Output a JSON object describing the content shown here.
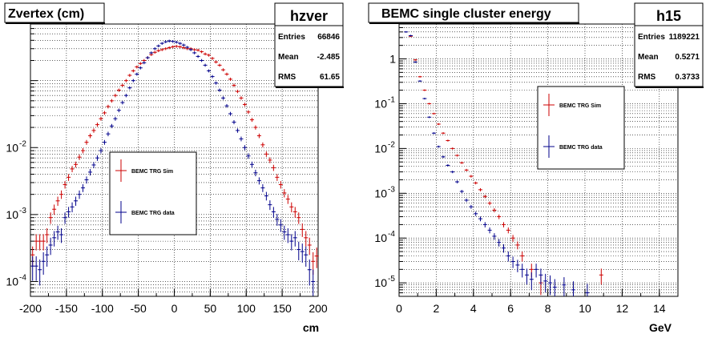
{
  "chart_data": [
    {
      "type": "scatter",
      "title": "Zvertex (cm)",
      "xlabel": "cm",
      "ylabel": "",
      "xlim": [
        -200,
        200
      ],
      "ylim": [
        6e-05,
        0.7
      ],
      "log_y": true,
      "grid": true,
      "x_ticks": [
        "-200",
        "-150",
        "-100",
        "-50",
        "0",
        "50",
        "100",
        "150",
        "200"
      ],
      "y_ticks": [
        {
          "base": "10",
          "exp": "-2",
          "value": 0.01
        },
        {
          "base": "10",
          "exp": "-3",
          "value": 0.001
        },
        {
          "base": "10",
          "exp": "-4",
          "value": 0.0001
        }
      ],
      "stats": {
        "name": "hzver",
        "rows": [
          {
            "label": "Entries",
            "value": "66846"
          },
          {
            "label": "Mean",
            "value": "-2.485"
          },
          {
            "label": "RMS",
            "value": "61.65"
          }
        ]
      },
      "legend": {
        "position": "center-left",
        "entries": [
          {
            "label": "BEMC TRG Sim",
            "color": "#cc0000"
          },
          {
            "label": "BEMC TRG data",
            "color": "#00008b"
          }
        ]
      },
      "series": [
        {
          "color": "#cc0000",
          "points": [
            [
              -197,
              0.00025
            ],
            [
              -192,
              0.0004
            ],
            [
              -187,
              0.0004
            ],
            [
              -182,
              0.0004
            ],
            [
              -177,
              0.0005
            ],
            [
              -172,
              0.0009
            ],
            [
              -167,
              0.0012
            ],
            [
              -162,
              0.0016
            ],
            [
              -157,
              0.002
            ],
            [
              -152,
              0.0028
            ],
            [
              -147,
              0.0036
            ],
            [
              -142,
              0.0048
            ],
            [
              -137,
              0.0056
            ],
            [
              -132,
              0.0072
            ],
            [
              -127,
              0.009
            ],
            [
              -122,
              0.012
            ],
            [
              -117,
              0.015
            ],
            [
              -112,
              0.018
            ],
            [
              -107,
              0.022
            ],
            [
              -102,
              0.027
            ],
            [
              -97,
              0.033
            ],
            [
              -92,
              0.041
            ],
            [
              -87,
              0.05
            ],
            [
              -82,
              0.06
            ],
            [
              -77,
              0.072
            ],
            [
              -72,
              0.085
            ],
            [
              -67,
              0.1
            ],
            [
              -62,
              0.12
            ],
            [
              -57,
              0.14
            ],
            [
              -52,
              0.16
            ],
            [
              -47,
              0.18
            ],
            [
              -42,
              0.2
            ],
            [
              -37,
              0.22
            ],
            [
              -32,
              0.245
            ],
            [
              -27,
              0.265
            ],
            [
              -22,
              0.28
            ],
            [
              -17,
              0.29
            ],
            [
              -12,
              0.3
            ],
            [
              -7,
              0.31
            ],
            [
              -2,
              0.32
            ],
            [
              3,
              0.325
            ],
            [
              8,
              0.32
            ],
            [
              13,
              0.31
            ],
            [
              18,
              0.3
            ],
            [
              23,
              0.3
            ],
            [
              28,
              0.29
            ],
            [
              33,
              0.285
            ],
            [
              38,
              0.27
            ],
            [
              43,
              0.25
            ],
            [
              48,
              0.24
            ],
            [
              53,
              0.215
            ],
            [
              58,
              0.19
            ],
            [
              63,
              0.17
            ],
            [
              68,
              0.145
            ],
            [
              73,
              0.125
            ],
            [
              78,
              0.105
            ],
            [
              83,
              0.085
            ],
            [
              88,
              0.069
            ],
            [
              93,
              0.055
            ],
            [
              98,
              0.044
            ],
            [
              103,
              0.034
            ],
            [
              108,
              0.026
            ],
            [
              113,
              0.02
            ],
            [
              118,
              0.015
            ],
            [
              123,
              0.011
            ],
            [
              128,
              0.008
            ],
            [
              133,
              0.0065
            ],
            [
              138,
              0.005
            ],
            [
              143,
              0.0036
            ],
            [
              148,
              0.0028
            ],
            [
              153,
              0.0021
            ],
            [
              158,
              0.0017
            ],
            [
              163,
              0.0013
            ],
            [
              168,
              0.0011
            ],
            [
              173,
              0.0009
            ],
            [
              178,
              0.0006
            ],
            [
              183,
              0.00045
            ],
            [
              188,
              0.00035
            ],
            [
              193,
              0.0002
            ],
            [
              198,
              0.00024
            ]
          ]
        },
        {
          "color": "#00008b",
          "points": [
            [
              -197,
              0.00017
            ],
            [
              -192,
              0.00017
            ],
            [
              -187,
              0.00015
            ],
            [
              -182,
              0.0002
            ],
            [
              -177,
              0.00025
            ],
            [
              -172,
              0.00035
            ],
            [
              -167,
              0.00045
            ],
            [
              -162,
              0.00055
            ],
            [
              -157,
              0.0005
            ],
            [
              -152,
              0.0009
            ],
            [
              -147,
              0.0011
            ],
            [
              -142,
              0.0013
            ],
            [
              -137,
              0.0016
            ],
            [
              -132,
              0.002
            ],
            [
              -127,
              0.0025
            ],
            [
              -122,
              0.0033
            ],
            [
              -117,
              0.0043
            ],
            [
              -112,
              0.0055
            ],
            [
              -107,
              0.007
            ],
            [
              -102,
              0.009
            ],
            [
              -97,
              0.012
            ],
            [
              -92,
              0.016
            ],
            [
              -87,
              0.021
            ],
            [
              -82,
              0.027
            ],
            [
              -77,
              0.036
            ],
            [
              -72,
              0.047
            ],
            [
              -67,
              0.06
            ],
            [
              -62,
              0.078
            ],
            [
              -57,
              0.1
            ],
            [
              -52,
              0.125
            ],
            [
              -47,
              0.155
            ],
            [
              -42,
              0.185
            ],
            [
              -37,
              0.22
            ],
            [
              -32,
              0.26
            ],
            [
              -27,
              0.3
            ],
            [
              -22,
              0.33
            ],
            [
              -17,
              0.36
            ],
            [
              -12,
              0.38
            ],
            [
              -7,
              0.39
            ],
            [
              -2,
              0.385
            ],
            [
              3,
              0.375
            ],
            [
              8,
              0.36
            ],
            [
              13,
              0.34
            ],
            [
              18,
              0.315
            ],
            [
              23,
              0.29
            ],
            [
              28,
              0.26
            ],
            [
              33,
              0.23
            ],
            [
              38,
              0.2
            ],
            [
              43,
              0.17
            ],
            [
              48,
              0.14
            ],
            [
              53,
              0.115
            ],
            [
              58,
              0.092
            ],
            [
              63,
              0.072
            ],
            [
              68,
              0.055
            ],
            [
              73,
              0.042
            ],
            [
              78,
              0.032
            ],
            [
              83,
              0.024
            ],
            [
              88,
              0.018
            ],
            [
              93,
              0.0135
            ],
            [
              98,
              0.01
            ],
            [
              103,
              0.0075
            ],
            [
              108,
              0.0056
            ],
            [
              113,
              0.0042
            ],
            [
              118,
              0.0032
            ],
            [
              123,
              0.0025
            ],
            [
              128,
              0.0019
            ],
            [
              133,
              0.0014
            ],
            [
              138,
              0.0011
            ],
            [
              143,
              0.00085
            ],
            [
              148,
              0.0007
            ],
            [
              153,
              0.00055
            ],
            [
              158,
              0.0005
            ],
            [
              163,
              0.0004
            ],
            [
              168,
              0.00045
            ],
            [
              173,
              0.0003
            ],
            [
              178,
              0.00028
            ],
            [
              183,
              0.00025
            ],
            [
              188,
              0.00015
            ],
            [
              193,
              0.0001
            ]
          ]
        }
      ]
    },
    {
      "type": "scatter",
      "title": "BEMC single cluster energy",
      "xlabel": "GeV",
      "ylabel": "",
      "xlim": [
        0,
        15
      ],
      "ylim": [
        5e-06,
        6
      ],
      "log_y": true,
      "grid": true,
      "x_ticks": [
        "0",
        "2",
        "4",
        "6",
        "8",
        "10",
        "12",
        "14"
      ],
      "y_ticks": [
        {
          "base": "1",
          "exp": "",
          "value": 1
        },
        {
          "base": "10",
          "exp": "-1",
          "value": 0.1
        },
        {
          "base": "10",
          "exp": "-2",
          "value": 0.01
        },
        {
          "base": "10",
          "exp": "-3",
          "value": 0.001
        },
        {
          "base": "10",
          "exp": "-4",
          "value": 0.0001
        },
        {
          "base": "10",
          "exp": "-5",
          "value": 1e-05
        }
      ],
      "stats": {
        "name": "h15",
        "rows": [
          {
            "label": "Entries",
            "value": "1189221"
          },
          {
            "label": "Mean",
            "value": "0.5271"
          },
          {
            "label": "RMS",
            "value": "0.3733"
          }
        ]
      },
      "legend": {
        "position": "center-right",
        "entries": [
          {
            "label": "BEMC TRG Sim",
            "color": "#cc0000"
          },
          {
            "label": "BEMC TRG data",
            "color": "#00008b"
          }
        ]
      },
      "series": [
        {
          "color": "#cc0000",
          "points": [
            [
              0.625,
              3.2
            ],
            [
              0.875,
              0.95
            ],
            [
              1.125,
              0.4
            ],
            [
              1.375,
              0.2
            ],
            [
              1.625,
              0.1
            ],
            [
              1.875,
              0.06
            ],
            [
              2.125,
              0.035
            ],
            [
              2.375,
              0.022
            ],
            [
              2.625,
              0.015
            ],
            [
              2.875,
              0.01
            ],
            [
              3.125,
              0.007
            ],
            [
              3.375,
              0.0048
            ],
            [
              3.625,
              0.0033
            ],
            [
              3.875,
              0.0024
            ],
            [
              4.125,
              0.0017
            ],
            [
              4.375,
              0.0012
            ],
            [
              4.625,
              0.00085
            ],
            [
              4.875,
              0.0006
            ],
            [
              5.125,
              0.00042
            ],
            [
              5.375,
              0.0003
            ],
            [
              5.625,
              0.0002
            ],
            [
              5.875,
              0.00015
            ],
            [
              6.125,
              0.0001
            ],
            [
              6.375,
              7e-05
            ],
            [
              6.625,
              4e-05
            ],
            [
              7.125,
              2e-05
            ],
            [
              7.625,
              1e-05
            ],
            [
              10.875,
              1.5e-05
            ]
          ]
        },
        {
          "color": "#00008b",
          "points": [
            [
              0.375,
              4
            ],
            [
              0.625,
              3.3
            ],
            [
              0.875,
              0.85
            ],
            [
              1.125,
              0.32
            ],
            [
              1.375,
              0.13
            ],
            [
              1.625,
              0.05
            ],
            [
              1.875,
              0.022
            ],
            [
              2.125,
              0.011
            ],
            [
              2.375,
              0.0065
            ],
            [
              2.625,
              0.0042
            ],
            [
              2.875,
              0.003
            ],
            [
              3.125,
              0.0018
            ],
            [
              3.375,
              0.0011
            ],
            [
              3.625,
              0.0007
            ],
            [
              3.875,
              0.0005
            ],
            [
              4.125,
              0.00035
            ],
            [
              4.375,
              0.00027
            ],
            [
              4.625,
              0.0002
            ],
            [
              4.875,
              0.00015
            ],
            [
              5.125,
              0.00011
            ],
            [
              5.375,
              8e-05
            ],
            [
              5.625,
              6e-05
            ],
            [
              5.875,
              4e-05
            ],
            [
              6.125,
              3e-05
            ],
            [
              6.375,
              2.5e-05
            ],
            [
              6.625,
              2e-05
            ],
            [
              6.875,
              1.5e-05
            ],
            [
              7.125,
              1.2e-05
            ],
            [
              7.375,
              2e-05
            ],
            [
              7.625,
              1.5e-05
            ],
            [
              7.875,
              1.1e-05
            ],
            [
              8.125,
              1e-05
            ],
            [
              8.375,
              8e-06
            ],
            [
              8.875,
              9e-06
            ],
            [
              9.375,
              7e-06
            ],
            [
              10.125,
              6e-06
            ]
          ]
        }
      ]
    }
  ]
}
